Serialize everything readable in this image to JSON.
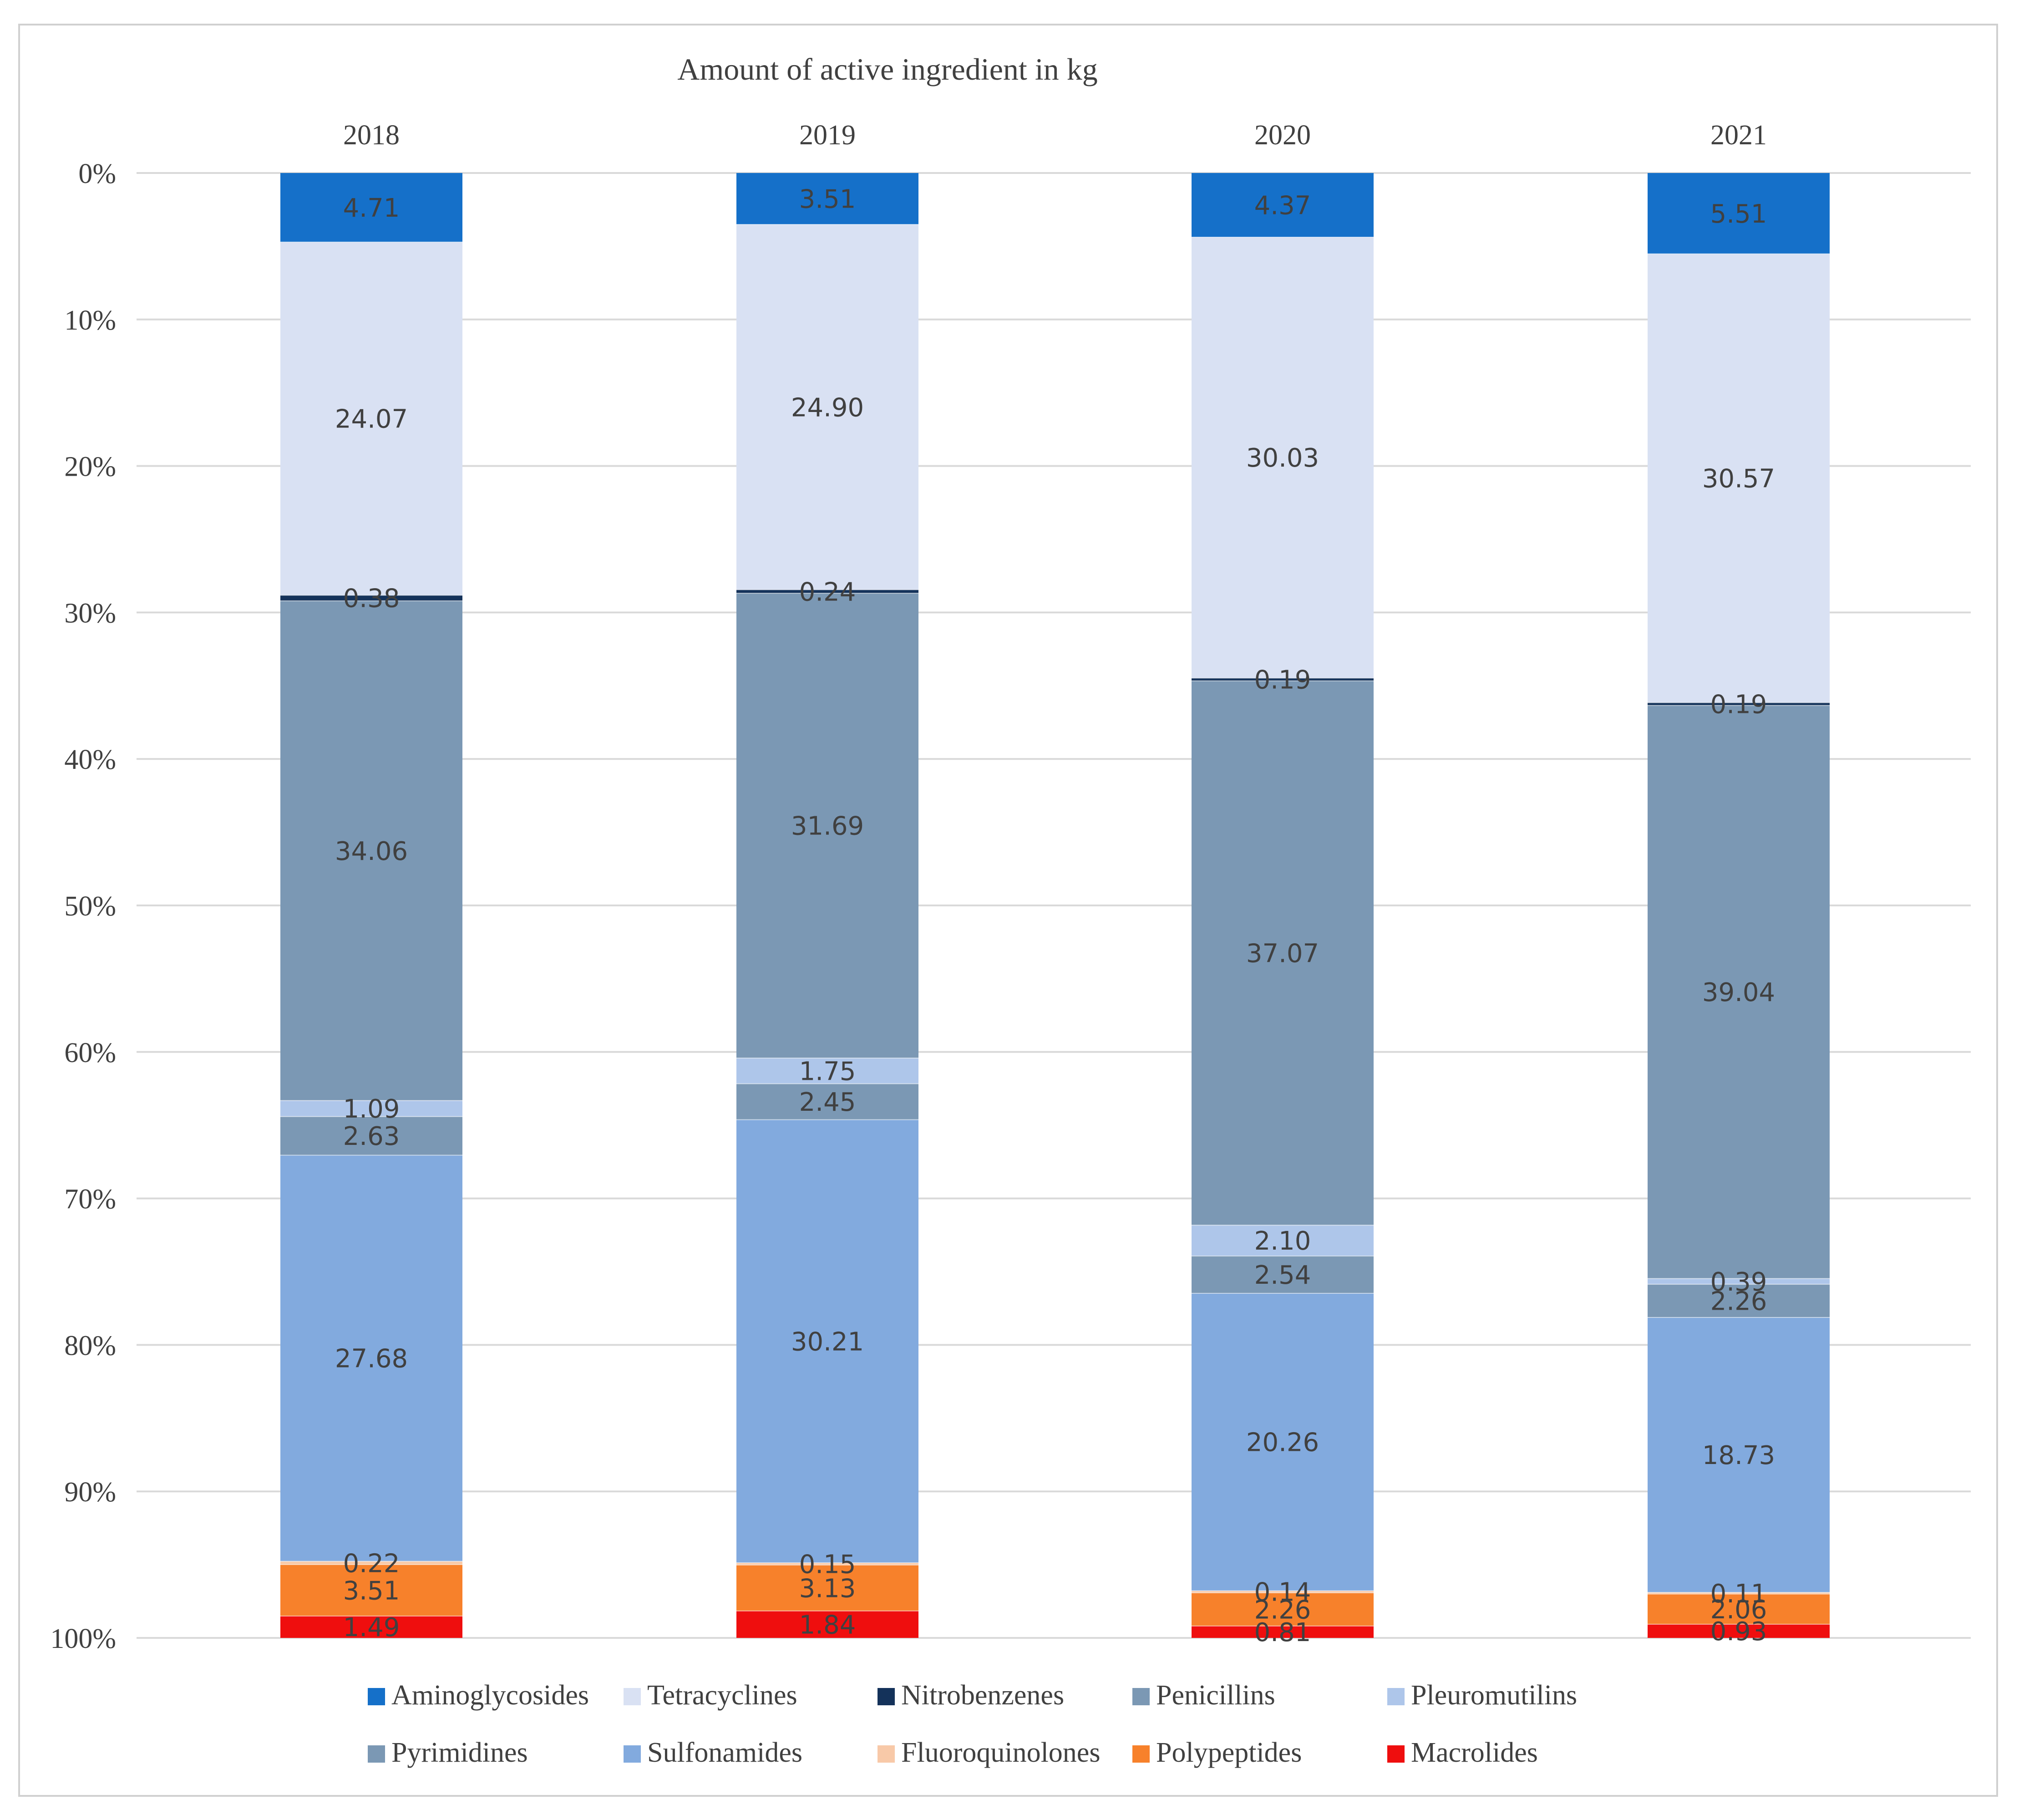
{
  "chart_data": {
    "type": "bar",
    "stacked": true,
    "orientation": "vertical",
    "y_axis_inverted": true,
    "title": "Amount of active ingredient in kg",
    "categories": [
      "2018",
      "2019",
      "2020",
      "2021"
    ],
    "y_ticks": [
      "0%",
      "10%",
      "20%",
      "30%",
      "40%",
      "50%",
      "60%",
      "70%",
      "80%",
      "90%",
      "100%"
    ],
    "ylim": [
      0,
      100
    ],
    "grid": true,
    "legend_position": "bottom",
    "series": [
      {
        "name": "Aminoglycosides",
        "color": "#1570c9",
        "values": [
          4.71,
          3.51,
          4.37,
          5.51
        ],
        "labels": [
          "4.71",
          "3.51",
          "4.37",
          "5.51"
        ]
      },
      {
        "name": "Tetracyclines",
        "color": "#d9e1f3",
        "values": [
          24.07,
          24.9,
          30.03,
          30.57
        ],
        "labels": [
          "24.07",
          "24.90",
          "30.03",
          "30.57"
        ]
      },
      {
        "name": "Nitrobenzenes",
        "color": "#14325a",
        "values": [
          0.38,
          0.24,
          0.19,
          0.19
        ],
        "labels": [
          "0.38",
          "0.24",
          "0.19",
          "0.19"
        ]
      },
      {
        "name": "Penicillins",
        "color": "#7b98b4",
        "values": [
          34.06,
          31.69,
          37.07,
          39.04
        ],
        "labels": [
          "34.06",
          "31.69",
          "37.07",
          "39.04"
        ]
      },
      {
        "name": "Pleuromutilins",
        "color": "#aec6ea",
        "values": [
          1.09,
          1.75,
          2.1,
          0.39
        ],
        "labels": [
          "1.09",
          "1.75",
          "2.10",
          "0.39"
        ]
      },
      {
        "name": "Pyrimidines",
        "color": "#7b98b4",
        "values": [
          2.63,
          2.45,
          2.54,
          2.26
        ],
        "labels": [
          "2.63",
          "2.45",
          "2.54",
          "2.26"
        ]
      },
      {
        "name": "Sulfonamides",
        "color": "#82aade",
        "values": [
          27.68,
          30.21,
          20.26,
          18.73
        ],
        "labels": [
          "27.68",
          "30.21",
          "20.26",
          "18.73"
        ]
      },
      {
        "name": "Fluoroquinolones",
        "color": "#f8c9a8",
        "values": [
          0.22,
          0.15,
          0.14,
          0.11
        ],
        "labels": [
          "0.22",
          "0.15",
          "0.14",
          "0.11"
        ]
      },
      {
        "name": "Polypeptides",
        "color": "#f7812b",
        "values": [
          3.51,
          3.13,
          2.26,
          2.06
        ],
        "labels": [
          "3.51",
          "3.13",
          "2.26",
          "2.06"
        ]
      },
      {
        "name": "Macrolides",
        "color": "#ef0e0e",
        "values": [
          1.49,
          1.84,
          0.81,
          0.93
        ],
        "labels": [
          "1.49",
          "1.84",
          "0.81",
          "0.93"
        ]
      }
    ]
  }
}
